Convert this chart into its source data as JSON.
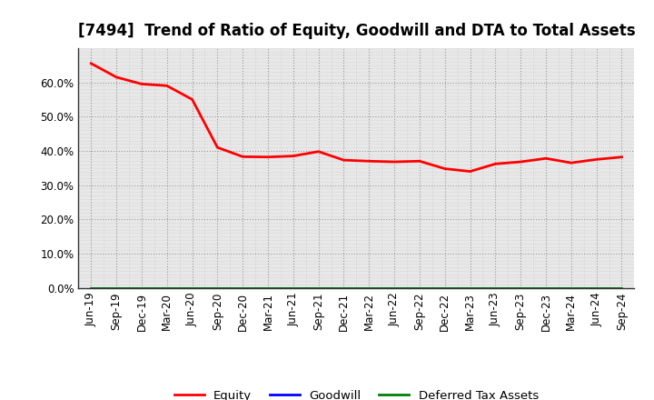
{
  "title": "[7494]  Trend of Ratio of Equity, Goodwill and DTA to Total Assets",
  "x_labels": [
    "Jun-19",
    "Sep-19",
    "Dec-19",
    "Mar-20",
    "Jun-20",
    "Sep-20",
    "Dec-20",
    "Mar-21",
    "Jun-21",
    "Sep-21",
    "Dec-21",
    "Mar-22",
    "Jun-22",
    "Sep-22",
    "Dec-22",
    "Mar-23",
    "Jun-23",
    "Sep-23",
    "Dec-23",
    "Mar-24",
    "Jun-24",
    "Sep-24"
  ],
  "equity": [
    0.655,
    0.615,
    0.595,
    0.59,
    0.55,
    0.41,
    0.383,
    0.382,
    0.385,
    0.398,
    0.373,
    0.37,
    0.368,
    0.37,
    0.348,
    0.34,
    0.362,
    0.368,
    0.378,
    0.365,
    0.375,
    0.382
  ],
  "goodwill": [
    0.0,
    0.0,
    0.0,
    0.0,
    0.0,
    0.0,
    0.0,
    0.0,
    0.0,
    0.0,
    0.0,
    0.0,
    0.0,
    0.0,
    0.0,
    0.0,
    0.0,
    0.0,
    0.0,
    0.0,
    0.0,
    0.0
  ],
  "dta": [
    0.0,
    0.0,
    0.0,
    0.0,
    0.0,
    0.0,
    0.0,
    0.0,
    0.0,
    0.0,
    0.0,
    0.0,
    0.0,
    0.0,
    0.0,
    0.0,
    0.0,
    0.0,
    0.0,
    0.0,
    0.0,
    0.0
  ],
  "equity_color": "#FF0000",
  "goodwill_color": "#0000FF",
  "dta_color": "#008000",
  "ylim": [
    0.0,
    0.7
  ],
  "yticks": [
    0.0,
    0.1,
    0.2,
    0.3,
    0.4,
    0.5,
    0.6
  ],
  "background_color": "#FFFFFF",
  "plot_bg_color": "#E8E8E8",
  "major_grid_color": "#999999",
  "minor_grid_color": "#BBBBBB",
  "title_fontsize": 12,
  "axis_fontsize": 8.5,
  "legend_fontsize": 9.5
}
